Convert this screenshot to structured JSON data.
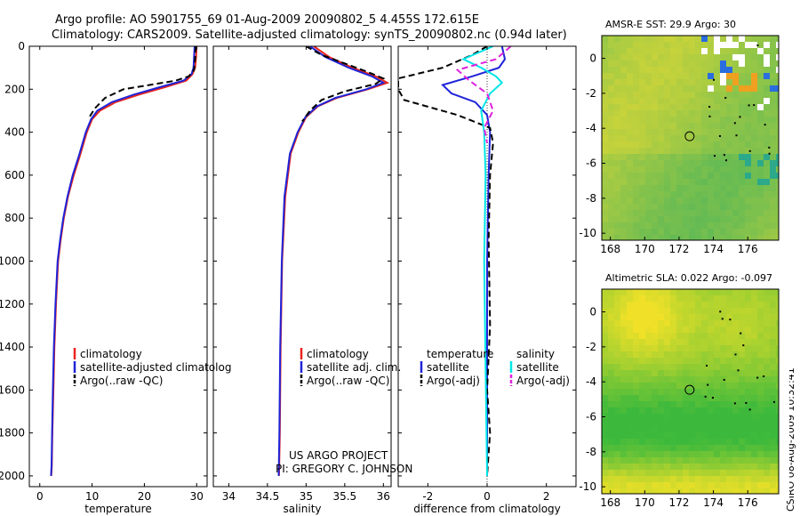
{
  "header": {
    "title_line1": "Argo profile: AO 5901755_69 01-Aug-2009 20090802_5 4.455S 172.615E",
    "title_line2": "Climatology: CARS2009. Satellite-adjusted climatology: synTS_20090802.nc (0.94d later)"
  },
  "credits": {
    "project": "US ARGO PROJECT",
    "pi": "PI: GREGORY C. JOHNSON",
    "stamp": "CSIRO 08-Aug-2009 10:32:41"
  },
  "colors": {
    "climatology": "#e8251c",
    "satellite": "#1f24d8",
    "argo": "#000000",
    "salinity_satellite": "#00e6e6",
    "salinity_argo": "#dd22dd"
  },
  "chart_data": [
    {
      "id": "temperature",
      "type": "line",
      "xlabel": "temperature",
      "xlim": [
        -2,
        32
      ],
      "ylim": [
        0,
        2050
      ],
      "y_reversed": true,
      "xticks": [
        0,
        10,
        20,
        30
      ],
      "yticks": [
        0,
        200,
        400,
        600,
        800,
        1000,
        1200,
        1400,
        1600,
        1800,
        2000
      ],
      "legend": [
        "climatology",
        "satellite-adjusted climatolog",
        "Argo(..raw -QC)"
      ],
      "series": [
        {
          "name": "climatology",
          "color": "#e8251c",
          "dash": "",
          "x": [
            30.0,
            29.9,
            29.7,
            29.2,
            28.0,
            24.0,
            19.0,
            14.5,
            11.5,
            10.0,
            9.0,
            7.8,
            6.5,
            5.4,
            4.6,
            4.0,
            3.5,
            3.1,
            2.8,
            2.6,
            2.4,
            2.3,
            2.2
          ],
          "y": [
            0,
            50,
            100,
            130,
            160,
            190,
            225,
            260,
            300,
            340,
            400,
            500,
            600,
            700,
            800,
            900,
            1000,
            1200,
            1400,
            1600,
            1800,
            1950,
            2000
          ]
        },
        {
          "name": "satellite-adjusted climatolog",
          "color": "#1f24d8",
          "dash": "",
          "x": [
            29.6,
            29.5,
            29.4,
            29.0,
            27.5,
            23.0,
            18.0,
            13.8,
            11.0,
            9.8,
            8.8,
            7.6,
            6.3,
            5.3,
            4.5,
            3.9,
            3.4,
            3.0,
            2.7,
            2.5,
            2.35,
            2.25,
            2.15
          ],
          "y": [
            0,
            50,
            100,
            130,
            160,
            190,
            225,
            260,
            300,
            340,
            400,
            500,
            600,
            700,
            800,
            900,
            1000,
            1200,
            1400,
            1600,
            1800,
            1950,
            2000
          ]
        },
        {
          "name": "Argo(..raw -QC)",
          "color": "#000000",
          "dash": "7,4",
          "x": [
            29.8,
            29.7,
            29.5,
            28.5,
            26.0,
            21.0,
            16.0,
            12.5,
            10.5,
            9.5
          ],
          "y": [
            0,
            60,
            110,
            140,
            160,
            180,
            200,
            240,
            290,
            330
          ]
        }
      ]
    },
    {
      "id": "salinity",
      "type": "line",
      "xlabel": "salinity",
      "xlim": [
        33.8,
        36.1
      ],
      "ylim": [
        0,
        2050
      ],
      "y_reversed": true,
      "xticks": [
        34,
        34.5,
        35,
        35.5,
        36
      ],
      "legend": [
        "climatology",
        "satellite adj. clim.",
        "Argo(..raw -QC)"
      ],
      "series": [
        {
          "name": "climatology",
          "color": "#e8251c",
          "dash": "",
          "x": [
            35.1,
            35.3,
            35.6,
            35.9,
            36.05,
            35.8,
            35.4,
            35.15,
            35.0,
            34.9,
            34.8,
            34.73,
            34.69,
            34.67,
            34.66,
            34.65
          ],
          "y": [
            0,
            50,
            100,
            140,
            170,
            200,
            240,
            280,
            330,
            400,
            500,
            700,
            1000,
            1400,
            1800,
            2000
          ]
        },
        {
          "name": "satellite adj. clim.",
          "color": "#1f24d8",
          "dash": "",
          "x": [
            35.05,
            35.25,
            35.55,
            35.85,
            36.0,
            35.78,
            35.38,
            35.14,
            34.99,
            34.89,
            34.79,
            34.72,
            34.685,
            34.665,
            34.655,
            34.645
          ],
          "y": [
            0,
            50,
            100,
            140,
            170,
            200,
            240,
            280,
            330,
            400,
            500,
            700,
            1000,
            1400,
            1800,
            2000
          ]
        },
        {
          "name": "Argo(..raw -QC)",
          "color": "#000000",
          "dash": "7,4",
          "x": [
            35.0,
            35.2,
            35.5,
            35.8,
            36.0,
            35.9,
            35.5,
            35.2,
            35.05,
            34.95
          ],
          "y": [
            0,
            40,
            80,
            120,
            150,
            175,
            210,
            250,
            300,
            350
          ]
        }
      ]
    },
    {
      "id": "difference",
      "type": "line",
      "xlabel": "difference from climatology",
      "xlim": [
        -3,
        3
      ],
      "ylim": [
        0,
        2050
      ],
      "y_reversed": true,
      "xticks": [
        -2,
        0,
        2
      ],
      "legend": [
        "temperature",
        "satellite",
        "Argo(-adj)",
        "salinity",
        "satellite",
        "Argo(-adj)"
      ],
      "series": [
        {
          "name": "satellite",
          "color": "#1f24d8",
          "dash": "",
          "x": [
            0.5,
            0.6,
            0.4,
            -0.5,
            -1.5,
            -1.2,
            -0.4,
            0.0,
            0.1,
            0.05,
            0.0,
            0.0,
            0.0
          ],
          "y": [
            0,
            60,
            100,
            140,
            180,
            220,
            260,
            320,
            400,
            600,
            1000,
            1600,
            2000
          ]
        },
        {
          "name": "Argo(-adj)",
          "color": "#000000",
          "dash": "7,4",
          "x": [
            0.0,
            -0.5,
            -1.5,
            -3.0,
            -3.0,
            -2.8,
            -1.0,
            0.1,
            0.2,
            0.1,
            0.05,
            0.1,
            0.0,
            0.1,
            0.0
          ],
          "y": [
            0,
            40,
            100,
            150,
            200,
            250,
            320,
            380,
            450,
            600,
            900,
            1300,
            1600,
            1800,
            2000
          ]
        },
        {
          "name": "satellite",
          "color": "#00e6e6",
          "dash": "",
          "x": [
            0.2,
            -0.8,
            -0.2,
            0.3,
            0.5,
            0.1,
            -0.2,
            -0.1,
            -0.05,
            -0.1,
            -0.05,
            0.0
          ],
          "y": [
            0,
            60,
            100,
            140,
            170,
            220,
            300,
            400,
            600,
            1000,
            1500,
            2000
          ]
        },
        {
          "name": "Argo(-adj)",
          "color": "#dd22dd",
          "dash": "7,4",
          "x": [
            0.8,
            0.3,
            -1.0,
            -0.6,
            0.0,
            0.2,
            -0.1,
            0.0
          ],
          "y": [
            0,
            60,
            110,
            160,
            220,
            300,
            380,
            450
          ]
        }
      ]
    }
  ],
  "maps": [
    {
      "id": "sst-map",
      "title": "AMSR-E SST: 29.9 Argo: 30",
      "xticks": [
        168,
        170,
        172,
        174,
        176
      ],
      "yticks": [
        0,
        -2,
        -4,
        -6,
        -8,
        -10
      ],
      "xlim": [
        167.5,
        177.8
      ],
      "ylim": [
        -10.4,
        1.3
      ],
      "argo_location": {
        "lon": 172.615,
        "lat": -4.455
      }
    },
    {
      "id": "sla-map",
      "title": "Altimetric SLA: 0.022 Argo: -0.097",
      "xticks": [
        168,
        170,
        172,
        174,
        176
      ],
      "yticks": [
        0,
        -2,
        -4,
        -6,
        -8,
        -10
      ],
      "xlim": [
        167.5,
        177.8
      ],
      "ylim": [
        -10.4,
        1.3
      ],
      "argo_location": {
        "lon": 172.615,
        "lat": -4.455
      }
    }
  ]
}
